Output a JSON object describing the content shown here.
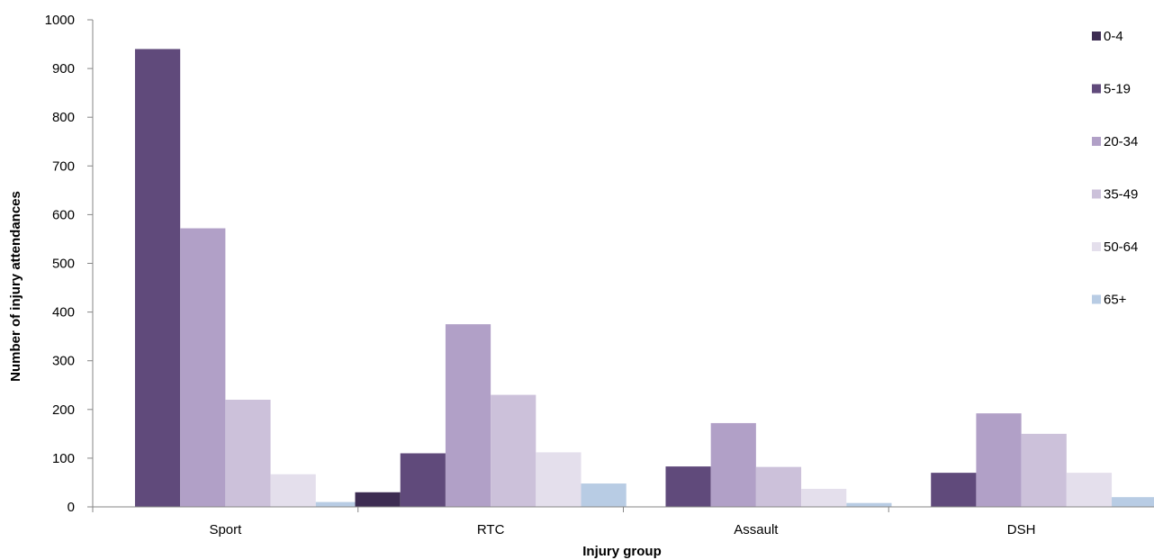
{
  "chart_data": {
    "type": "bar",
    "title": "",
    "xlabel": "Injury group",
    "ylabel": "Number of injury attendances",
    "ylim": [
      0,
      1000
    ],
    "yticks": [
      0,
      100,
      200,
      300,
      400,
      500,
      600,
      700,
      800,
      900,
      1000
    ],
    "grid": false,
    "legend_position": "right",
    "categories": [
      "Sport",
      "RTC",
      "Assault",
      "DSH"
    ],
    "series": [
      {
        "name": "0-4",
        "color": "#3d2c52",
        "values": [
          0,
          30,
          0,
          0
        ]
      },
      {
        "name": "5-19",
        "color": "#604a7b",
        "values": [
          940,
          110,
          83,
          70
        ]
      },
      {
        "name": "20-34",
        "color": "#b1a0c7",
        "values": [
          572,
          375,
          172,
          192
        ]
      },
      {
        "name": "35-49",
        "color": "#ccc1da",
        "values": [
          220,
          230,
          82,
          150
        ]
      },
      {
        "name": "50-64",
        "color": "#e4dfec",
        "values": [
          67,
          112,
          37,
          70
        ]
      },
      {
        "name": "65+",
        "color": "#b8cce4",
        "values": [
          10,
          48,
          8,
          20
        ]
      }
    ]
  }
}
